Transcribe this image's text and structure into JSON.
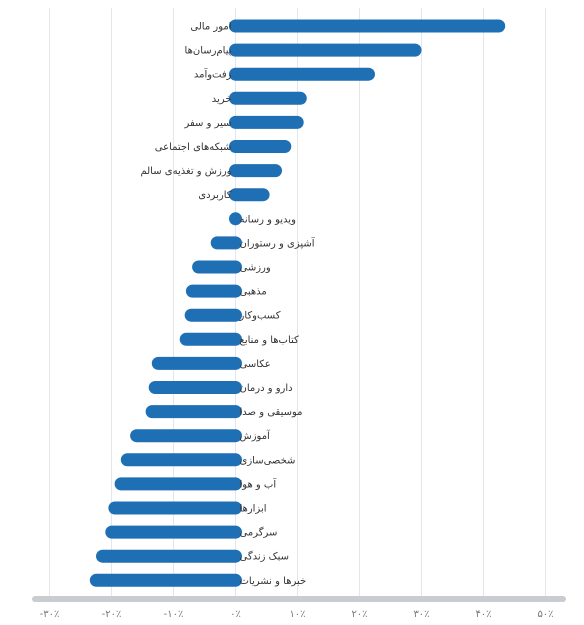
{
  "chart_data": {
    "type": "bar",
    "orientation": "horizontal",
    "categories": [
      "امور مالی",
      "پیام‌رسان‌ها",
      "رفت‌وآمد",
      "خرید",
      "سیر و سفر",
      "شبکه‌های اجتماعی",
      "ورزش و تغذیه‌ی سالم",
      "کاربردی",
      "ویدیو و رسانه",
      "آشپزی و رستوران",
      "ورزشی",
      "مذهبی",
      "کسب‌وکار",
      "کتاب‌ها و منابع",
      "عکاسی",
      "دارو و درمان",
      "موسیقی و صدا",
      "آموزش",
      "شخصی‌سازی",
      "آب و هوا",
      "ابزارها",
      "سرگرمی",
      "سبک زندگی",
      "خبرها و نشریات"
    ],
    "values": [
      43.5,
      30.0,
      22.5,
      11.5,
      11.0,
      9.0,
      7.5,
      5.5,
      -1.0,
      -4.0,
      -7.0,
      -8.0,
      -8.2,
      -9.0,
      -13.5,
      -14.0,
      -14.5,
      -17.0,
      -18.5,
      -19.5,
      -20.5,
      -21.0,
      -22.5,
      -23.5
    ],
    "xlim": [
      -30,
      50
    ],
    "ticks": [
      -30,
      -20,
      -10,
      0,
      10,
      20,
      30,
      40,
      50
    ],
    "tick_labels": [
      "-۳۰٪",
      "-۲۰٪",
      "-۱۰٪",
      "۰٪",
      "۱۰٪",
      "۲۰٪",
      "۳۰٪",
      "۴۰٪",
      "۵۰٪"
    ],
    "grid": true,
    "colors": {
      "bar": "#1f6fb5",
      "grid": "#e3e6ea",
      "axis": "#c9ccd1"
    }
  }
}
